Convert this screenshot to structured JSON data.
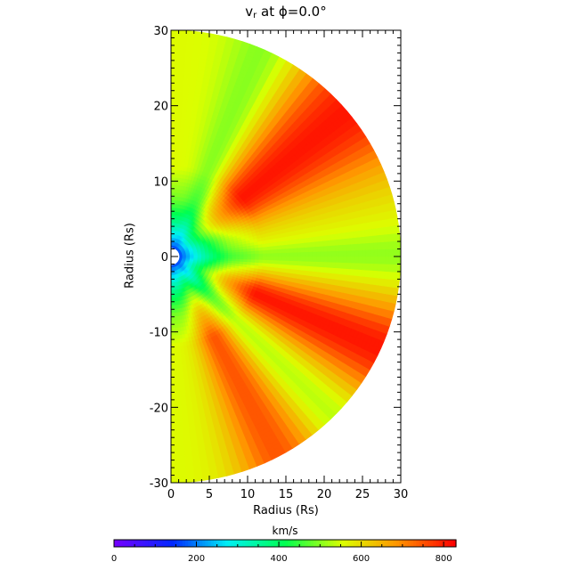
{
  "title": {
    "quantity": "v",
    "subscript": "r",
    "rest": " at ϕ=0.0°"
  },
  "chart_data": {
    "type": "heatmap",
    "title": "v_r at ϕ=0.0°",
    "xlabel": "Radius (Rs)",
    "ylabel": "Radius (Rs)",
    "xlim": [
      0,
      30
    ],
    "ylim": [
      -30,
      30
    ],
    "x_ticks": [
      0,
      5,
      10,
      15,
      20,
      25,
      30
    ],
    "y_ticks": [
      -30,
      -20,
      -10,
      0,
      10,
      20,
      30
    ],
    "domain": "half-disk r<=30 Rs, x>=0, inner hole r~1 Rs",
    "field_description": "radial solar wind velocity: ~100 km/s near origin rising outward; fast wedges (~800 km/s) at angles ~+40° and ~-25°, ~700 km/s near -65°; slow (~500 km/s) bands near +65°, 0°, -45°",
    "colorbar": {
      "label": "km/s",
      "min": 0,
      "max": 830,
      "ticks": [
        0,
        200,
        400,
        600,
        800
      ],
      "colormap": "rainbow (purple-blue-cyan-green-yellow-orange-red)"
    }
  }
}
